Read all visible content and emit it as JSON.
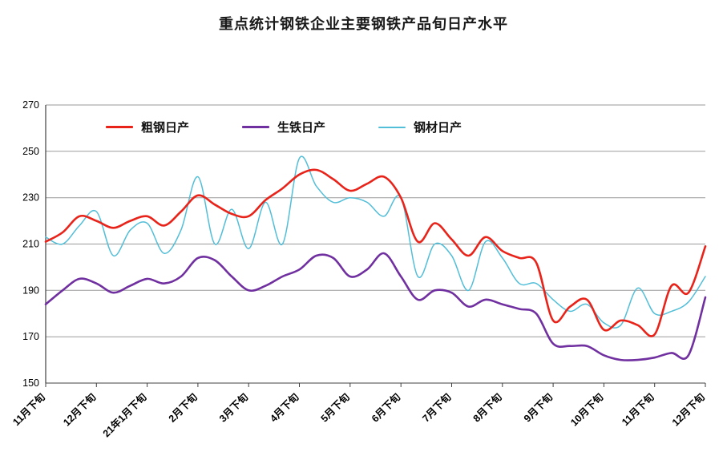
{
  "title": "重点统计钢铁企业主要钢铁产品旬日产水平",
  "chart_data": {
    "type": "line",
    "title": "重点统计钢铁企业主要钢铁产品旬日产水平",
    "xlabel": "",
    "ylabel": "",
    "ylim": [
      150,
      270
    ],
    "y_ticks": [
      150,
      170,
      190,
      210,
      230,
      250,
      270
    ],
    "grid": "horizontal",
    "legend_position": "top-inside",
    "points_per_series": 40,
    "x_tick_labels": [
      "11月下旬",
      "12月下旬",
      "21年1月下旬",
      "2月下旬",
      "3月下旬",
      "4月下旬",
      "5月下旬",
      "6月下旬",
      "7月下旬",
      "8月下旬",
      "9月下旬",
      "10月下旬",
      "11月下旬",
      "12月下旬"
    ],
    "x_tick_indices": [
      0,
      3,
      6,
      9,
      12,
      15,
      18,
      21,
      24,
      27,
      30,
      33,
      36,
      39
    ],
    "axis_color": "#404040",
    "grid_color": "#9a9a9a",
    "series": [
      {
        "name": "粗钢日产",
        "color": "#e8231a",
        "line_width": 2.6,
        "values": [
          211,
          215,
          222,
          220,
          217,
          220,
          222,
          218,
          224,
          231,
          227,
          223,
          222,
          229,
          234,
          240,
          242,
          238,
          233,
          236,
          239,
          230,
          211,
          219,
          212,
          205,
          213,
          207,
          204,
          202,
          177,
          183,
          186,
          173,
          177,
          175,
          171,
          192,
          189,
          209
        ]
      },
      {
        "name": "生铁日产",
        "color": "#7030a0",
        "line_width": 2.6,
        "values": [
          184,
          190,
          195,
          193,
          189,
          192,
          195,
          193,
          196,
          204,
          203,
          196,
          190,
          192,
          196,
          199,
          205,
          204,
          196,
          199,
          206,
          196,
          186,
          190,
          189,
          183,
          186,
          184,
          182,
          180,
          167,
          166,
          166,
          162,
          160,
          160,
          161,
          163,
          162,
          187
        ]
      },
      {
        "name": "钢材日产",
        "color": "#52bed8",
        "line_width": 1.5,
        "values": [
          213,
          210,
          218,
          224,
          205,
          216,
          219,
          206,
          216,
          239,
          210,
          225,
          208,
          228,
          210,
          247,
          235,
          228,
          230,
          228,
          222,
          230,
          196,
          210,
          205,
          190,
          211,
          204,
          193,
          193,
          186,
          181,
          184,
          176,
          175,
          191,
          180,
          181,
          185,
          196
        ]
      }
    ]
  }
}
